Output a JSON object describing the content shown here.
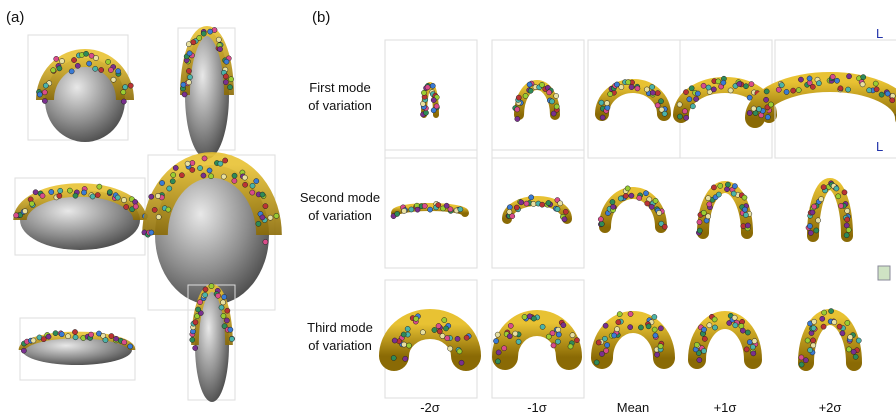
{
  "panel_a": {
    "label": "(a)"
  },
  "panel_b": {
    "label": "(b)",
    "rows": [
      {
        "label": [
          "First mode",
          "of variation"
        ]
      },
      {
        "label": [
          "Second mode",
          "of variation"
        ]
      },
      {
        "label": [
          "Third mode",
          "of variation"
        ]
      }
    ],
    "columns": [
      "-2σ",
      "-1σ",
      "Mean",
      "+1σ",
      "+2σ"
    ],
    "orientation_marks": [
      "L",
      "L"
    ]
  }
}
